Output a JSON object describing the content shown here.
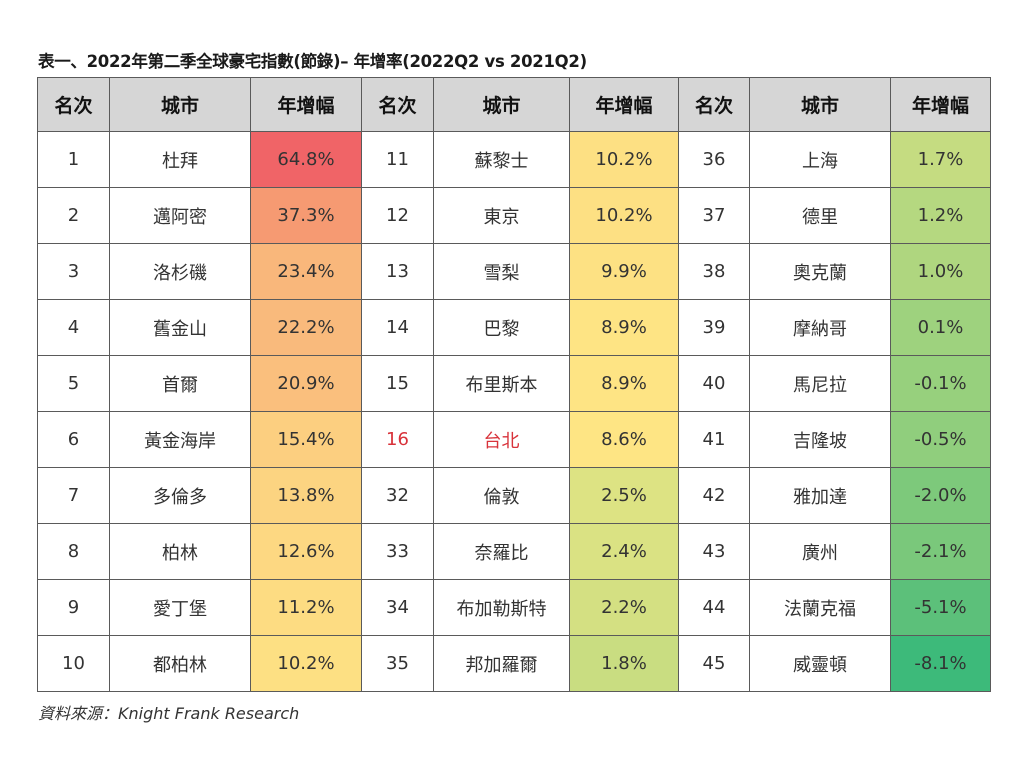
{
  "title": "表一、2022年第二季全球豪宅指數(節錄)– 年增率(2022Q2 vs 2021Q2)",
  "headers": [
    "名次",
    "城市",
    "年增幅",
    "名次",
    "城市",
    "年增幅",
    "名次",
    "城市",
    "年增幅"
  ],
  "groups": [
    [
      {
        "rank": "1",
        "city": "杜拜",
        "growth": "64.8%",
        "color": "#f06467"
      },
      {
        "rank": "2",
        "city": "邁阿密",
        "growth": "37.3%",
        "color": "#f69a72"
      },
      {
        "rank": "3",
        "city": "洛杉磯",
        "growth": "23.4%",
        "color": "#f9b77b"
      },
      {
        "rank": "4",
        "city": "舊金山",
        "growth": "22.2%",
        "color": "#f9ba7c"
      },
      {
        "rank": "5",
        "city": "首爾",
        "growth": "20.9%",
        "color": "#fabf7d"
      },
      {
        "rank": "6",
        "city": "黃金海岸",
        "growth": "15.4%",
        "color": "#fccf80"
      },
      {
        "rank": "7",
        "city": "多倫多",
        "growth": "13.8%",
        "color": "#fcd481"
      },
      {
        "rank": "8",
        "city": "柏林",
        "growth": "12.6%",
        "color": "#fdd882"
      },
      {
        "rank": "9",
        "city": "愛丁堡",
        "growth": "11.2%",
        "color": "#fddc82"
      },
      {
        "rank": "10",
        "city": "都柏林",
        "growth": "10.2%",
        "color": "#fde083"
      }
    ],
    [
      {
        "rank": "11",
        "city": "蘇黎士",
        "growth": "10.2%",
        "color": "#fde083"
      },
      {
        "rank": "12",
        "city": "東京",
        "growth": "10.2%",
        "color": "#fde083"
      },
      {
        "rank": "13",
        "city": "雪梨",
        "growth": "9.9%",
        "color": "#fde183"
      },
      {
        "rank": "14",
        "city": "巴黎",
        "growth": "8.9%",
        "color": "#fee484"
      },
      {
        "rank": "15",
        "city": "布里斯本",
        "growth": "8.9%",
        "color": "#fee484"
      },
      {
        "rank": "16",
        "city": "台北",
        "growth": "8.6%",
        "color": "#fee584",
        "highlight": true
      },
      {
        "rank": "32",
        "city": "倫敦",
        "growth": "2.5%",
        "color": "#dde383"
      },
      {
        "rank": "33",
        "city": "奈羅比",
        "growth": "2.4%",
        "color": "#dae283"
      },
      {
        "rank": "34",
        "city": "布加勒斯特",
        "growth": "2.2%",
        "color": "#d4e082"
      },
      {
        "rank": "35",
        "city": "邦加羅爾",
        "growth": "1.8%",
        "color": "#c9dd81"
      }
    ],
    [
      {
        "rank": "36",
        "city": "上海",
        "growth": "1.7%",
        "color": "#c5dc81"
      },
      {
        "rank": "37",
        "city": "德里",
        "growth": "1.2%",
        "color": "#b5d880"
      },
      {
        "rank": "38",
        "city": "奧克蘭",
        "growth": "1.0%",
        "color": "#afd67f"
      },
      {
        "rank": "39",
        "city": "摩納哥",
        "growth": "0.1%",
        "color": "#9ed27e"
      },
      {
        "rank": "40",
        "city": "馬尼拉",
        "growth": "-0.1%",
        "color": "#97d07d"
      },
      {
        "rank": "41",
        "city": "吉隆坡",
        "growth": "-0.5%",
        "color": "#90ce7d"
      },
      {
        "rank": "42",
        "city": "雅加達",
        "growth": "-2.0%",
        "color": "#7dc97b"
      },
      {
        "rank": "43",
        "city": "廣州",
        "growth": "-2.1%",
        "color": "#7ac87b"
      },
      {
        "rank": "44",
        "city": "法蘭克福",
        "growth": "-5.1%",
        "color": "#5cc07a"
      },
      {
        "rank": "45",
        "city": "威靈頓",
        "growth": "-8.1%",
        "color": "#3dba7a"
      }
    ]
  ],
  "source": "資料來源：Knight Frank Research"
}
